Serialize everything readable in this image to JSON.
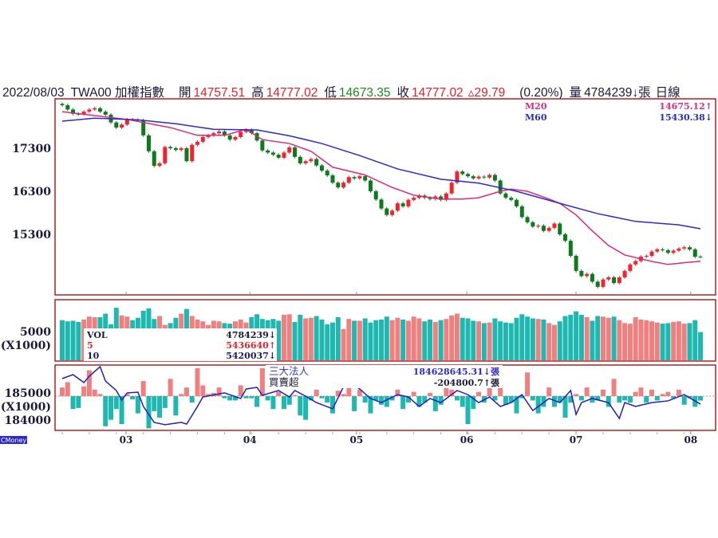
{
  "header": {
    "date": "2022/08/03",
    "symbol": "TWA00 加權指數",
    "open_label": "開",
    "open": "14757.51",
    "high_label": "高",
    "high": "14777.02",
    "low_label": "低",
    "low": "14673.35",
    "close_label": "收",
    "close": "14777.02",
    "change": "▵29.79",
    "change_pct": "(0.20%)",
    "volume_label": "量",
    "volume": "4784239↓張",
    "period": "日線"
  },
  "colors": {
    "up": "#f5222d",
    "down": "#0e7a1e",
    "ma20": "#e0287c",
    "ma60": "#2a2ad0",
    "vol_up": "#f08080",
    "vol_down": "#1fb8b0",
    "frame": "#b22222"
  },
  "price_legend": {
    "ma20_label": "M20",
    "ma20_value": "14675.12↑",
    "ma60_label": "M60",
    "ma60_value": "15430.38↓"
  },
  "volume_legend": {
    "vol_label": "VOL",
    "vol_value": "4784239↓",
    "ma5_label": "5",
    "ma5_value": "5436640↑",
    "ma10_label": "10",
    "ma10_value": "5420037↓"
  },
  "inst_legend": {
    "title": "三大法人",
    "title_value": "184628645.31↓張",
    "net_label": "買賣超",
    "net_value": "-204800.7↑張"
  },
  "axes": {
    "price_ticks": [
      "17300",
      "16300",
      "15300"
    ],
    "volume_ticks": [
      "5000",
      "(X1000)"
    ],
    "inst_ticks": [
      "185000",
      "(X1000)",
      "184000"
    ],
    "months": [
      {
        "label": "03",
        "i": 11.8
      },
      {
        "label": "04",
        "i": 34.7
      },
      {
        "label": "05",
        "i": 54.4
      },
      {
        "label": "06",
        "i": 74.8
      },
      {
        "label": "07",
        "i": 95
      },
      {
        "label": "08",
        "i": 116.2
      }
    ]
  },
  "brand": "CMoney",
  "chart_data": {
    "type": "candlestick",
    "title": "TWA00 加權指數 日線",
    "price_ylim": [
      13890,
      18450
    ],
    "close": [
      18300,
      18200,
      18100,
      18090,
      18150,
      18200,
      18230,
      18150,
      18080,
      17900,
      17780,
      17850,
      17970,
      17960,
      17950,
      17600,
      17230,
      16890,
      16950,
      17330,
      17300,
      17260,
      17300,
      17000,
      17380,
      17450,
      17560,
      17600,
      17650,
      17690,
      17600,
      17500,
      17560,
      17680,
      17730,
      17650,
      17480,
      17250,
      17200,
      17150,
      17080,
      17200,
      17320,
      17100,
      16950,
      17000,
      17050,
      16900,
      16780,
      16670,
      16500,
      16390,
      16500,
      16630,
      16600,
      16650,
      16550,
      16300,
      16110,
      15900,
      15750,
      15850,
      16020,
      15950,
      16100,
      16150,
      16200,
      16150,
      16120,
      16180,
      16100,
      16250,
      16500,
      16760,
      16700,
      16650,
      16600,
      16640,
      16620,
      16680,
      16550,
      16250,
      16150,
      16100,
      15950,
      15700,
      15580,
      15480,
      15500,
      15380,
      15450,
      15550,
      15300,
      15150,
      14800,
      14450,
      14330,
      14380,
      14200,
      14080,
      14250,
      14300,
      14170,
      14300,
      14450,
      14600,
      14680,
      14780,
      14800,
      14900,
      14950,
      14930,
      14870,
      14920,
      14970,
      15000,
      14950,
      14780,
      14777
    ],
    "ma20": [
      {
        "i": 0,
        "v": 18150
      },
      {
        "i": 6,
        "v": 18060
      },
      {
        "i": 12,
        "v": 17970
      },
      {
        "i": 20,
        "v": 17780
      },
      {
        "i": 25,
        "v": 17600
      },
      {
        "i": 30,
        "v": 17600
      },
      {
        "i": 34,
        "v": 17740
      },
      {
        "i": 37,
        "v": 17500
      },
      {
        "i": 42,
        "v": 17410
      },
      {
        "i": 46,
        "v": 17230
      },
      {
        "i": 50,
        "v": 16860
      },
      {
        "i": 56,
        "v": 16680
      },
      {
        "i": 61,
        "v": 16390
      },
      {
        "i": 65,
        "v": 16210
      },
      {
        "i": 70,
        "v": 16120
      },
      {
        "i": 74,
        "v": 16120
      },
      {
        "i": 77,
        "v": 16150
      },
      {
        "i": 81,
        "v": 16300
      },
      {
        "i": 83,
        "v": 16350
      },
      {
        "i": 86,
        "v": 16300
      },
      {
        "i": 90,
        "v": 16120
      },
      {
        "i": 92,
        "v": 16020
      },
      {
        "i": 95,
        "v": 15750
      },
      {
        "i": 98,
        "v": 15380
      },
      {
        "i": 101,
        "v": 15040
      },
      {
        "i": 104,
        "v": 14820
      },
      {
        "i": 107,
        "v": 14730
      },
      {
        "i": 109,
        "v": 14670
      },
      {
        "i": 112,
        "v": 14600
      },
      {
        "i": 115,
        "v": 14640
      },
      {
        "i": 118,
        "v": 14675
      }
    ],
    "ma60": [
      {
        "i": 0,
        "v": 17930
      },
      {
        "i": 6,
        "v": 18000
      },
      {
        "i": 14,
        "v": 17960
      },
      {
        "i": 21,
        "v": 17870
      },
      {
        "i": 28,
        "v": 17740
      },
      {
        "i": 36,
        "v": 17725
      },
      {
        "i": 42,
        "v": 17590
      },
      {
        "i": 48,
        "v": 17410
      },
      {
        "i": 55,
        "v": 17130
      },
      {
        "i": 62,
        "v": 16820
      },
      {
        "i": 70,
        "v": 16580
      },
      {
        "i": 77,
        "v": 16490
      },
      {
        "i": 84,
        "v": 16300
      },
      {
        "i": 92,
        "v": 16020
      },
      {
        "i": 99,
        "v": 15780
      },
      {
        "i": 106,
        "v": 15600
      },
      {
        "i": 114,
        "v": 15520
      },
      {
        "i": 118,
        "v": 15430
      }
    ],
    "volume_x1000": [
      6800,
      6600,
      6700,
      6500,
      6900,
      7400,
      7300,
      7300,
      7900,
      6100,
      8900,
      7600,
      7400,
      6800,
      7200,
      8400,
      8800,
      7000,
      7500,
      6000,
      6300,
      7200,
      7900,
      8700,
      7500,
      6900,
      6600,
      6000,
      6700,
      6600,
      6300,
      6200,
      6600,
      6900,
      6400,
      7300,
      7800,
      7000,
      6800,
      7000,
      6700,
      7700,
      7800,
      6500,
      7700,
      7100,
      7200,
      7500,
      6900,
      6100,
      6400,
      7300,
      5300,
      7000,
      6700,
      6700,
      7100,
      6400,
      6800,
      6900,
      7400,
      6800,
      7200,
      6900,
      6700,
      7400,
      7100,
      6600,
      6900,
      6500,
      6800,
      7000,
      7600,
      7900,
      7200,
      7100,
      6700,
      6600,
      6300,
      6400,
      7100,
      6600,
      6400,
      6300,
      7200,
      7800,
      7400,
      7100,
      7000,
      6900,
      6300,
      6000,
      6600,
      7500,
      7700,
      8300,
      7700,
      7300,
      6700,
      7500,
      7400,
      7200,
      7400,
      6800,
      6300,
      6200,
      7300,
      6900,
      6800,
      6600,
      6400,
      6200,
      6300,
      6500,
      6600,
      6200,
      6300,
      6800,
      4784
    ],
    "volume_ylim": [
      0,
      10000
    ],
    "inst_net": [
      400,
      650,
      -600,
      -550,
      450,
      1200,
      300,
      100,
      -1400,
      -1100,
      -600,
      -1300,
      100,
      -150,
      -800,
      700,
      -1500,
      -700,
      -1000,
      -550,
      800,
      -900,
      100,
      400,
      -300,
      1300,
      500,
      100,
      150,
      400,
      -100,
      -200,
      -200,
      500,
      -100,
      -100,
      -500,
      1300,
      -200,
      -600,
      200,
      -600,
      -400,
      50,
      -900,
      -1100,
      -200,
      300,
      -100,
      -300,
      -800,
      250,
      100,
      400,
      -700,
      300,
      -300,
      -800,
      -200,
      -400,
      -500,
      -200,
      300,
      -600,
      -300,
      200,
      -500,
      -300,
      150,
      -700,
      -400,
      600,
      300,
      -200,
      -500,
      -1300,
      -600,
      200,
      -300,
      400,
      -200,
      500,
      -400,
      -300,
      -800,
      -100,
      1100,
      -200,
      -800,
      -500,
      400,
      -500,
      -300,
      -1000,
      -300,
      100,
      -200,
      400,
      -300,
      -200,
      300,
      -500,
      800,
      -300,
      -200,
      -300,
      200,
      400,
      -300,
      300,
      -200,
      100,
      200,
      -100,
      300,
      -400,
      -100,
      -500,
      -205
    ],
    "inst_cum_x1000": [
      {
        "i": 0,
        "v": 185815
      },
      {
        "i": 2,
        "v": 186000
      },
      {
        "i": 4,
        "v": 185630
      },
      {
        "i": 5,
        "v": 185925
      },
      {
        "i": 7,
        "v": 186370
      },
      {
        "i": 8,
        "v": 185700
      },
      {
        "i": 10,
        "v": 185260
      },
      {
        "i": 11,
        "v": 184815
      },
      {
        "i": 12,
        "v": 185150
      },
      {
        "i": 14,
        "v": 185185
      },
      {
        "i": 15,
        "v": 184520
      },
      {
        "i": 17,
        "v": 183780
      },
      {
        "i": 19,
        "v": 183670
      },
      {
        "i": 22,
        "v": 183780
      },
      {
        "i": 23,
        "v": 183700
      },
      {
        "i": 25,
        "v": 184520
      },
      {
        "i": 26,
        "v": 184960
      },
      {
        "i": 30,
        "v": 185150
      },
      {
        "i": 33,
        "v": 184890
      },
      {
        "i": 34,
        "v": 185330
      },
      {
        "i": 36,
        "v": 185410
      },
      {
        "i": 37,
        "v": 185040
      },
      {
        "i": 40,
        "v": 185260
      },
      {
        "i": 42,
        "v": 184960
      },
      {
        "i": 43,
        "v": 185260
      },
      {
        "i": 45,
        "v": 185000
      },
      {
        "i": 47,
        "v": 184700
      },
      {
        "i": 50,
        "v": 184410
      },
      {
        "i": 52,
        "v": 185440
      },
      {
        "i": 53,
        "v": 185700
      },
      {
        "i": 55,
        "v": 185330
      },
      {
        "i": 57,
        "v": 184890
      },
      {
        "i": 59,
        "v": 184700
      },
      {
        "i": 62,
        "v": 185070
      },
      {
        "i": 64,
        "v": 184960
      },
      {
        "i": 66,
        "v": 184520
      },
      {
        "i": 68,
        "v": 184890
      },
      {
        "i": 70,
        "v": 184700
      },
      {
        "i": 73,
        "v": 185260
      },
      {
        "i": 75,
        "v": 185070
      },
      {
        "i": 77,
        "v": 184700
      },
      {
        "i": 79,
        "v": 184960
      },
      {
        "i": 81,
        "v": 184520
      },
      {
        "i": 83,
        "v": 184700
      },
      {
        "i": 85,
        "v": 185070
      },
      {
        "i": 87,
        "v": 184330
      },
      {
        "i": 90,
        "v": 184890
      },
      {
        "i": 92,
        "v": 184700
      },
      {
        "i": 94,
        "v": 185260
      },
      {
        "i": 95,
        "v": 184150
      },
      {
        "i": 96,
        "v": 184700
      },
      {
        "i": 98,
        "v": 184890
      },
      {
        "i": 101,
        "v": 184700
      },
      {
        "i": 103,
        "v": 183960
      },
      {
        "i": 104,
        "v": 184700
      },
      {
        "i": 106,
        "v": 184520
      },
      {
        "i": 109,
        "v": 184700
      },
      {
        "i": 112,
        "v": 184780
      },
      {
        "i": 115,
        "v": 185070
      },
      {
        "i": 118,
        "v": 184628
      }
    ],
    "inst_ylim": [
      183500,
      186450
    ]
  }
}
